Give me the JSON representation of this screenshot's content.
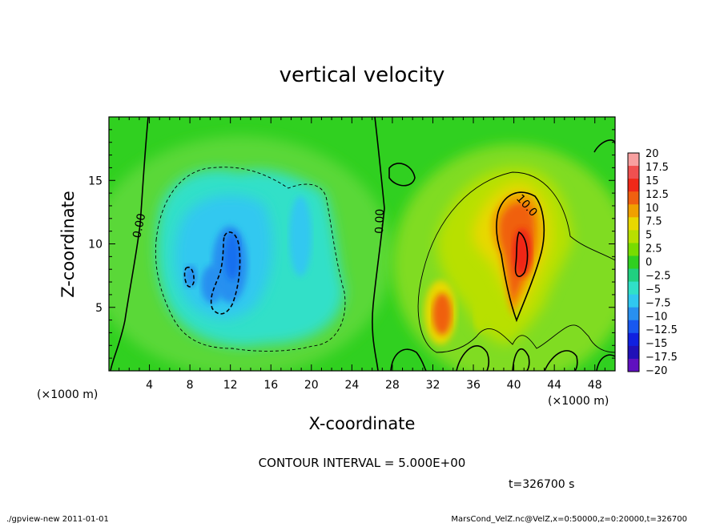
{
  "chart_data": {
    "type": "heatmap",
    "title": "vertical velocity",
    "xlabel": "X-coordinate",
    "ylabel": "Z-coordinate",
    "x_unit": "(×1000 m)",
    "y_unit": "(×1000 m)",
    "xlim": [
      0,
      50
    ],
    "ylim": [
      0,
      20
    ],
    "x_ticks": [
      4,
      8,
      12,
      16,
      20,
      24,
      28,
      32,
      36,
      40,
      44,
      48
    ],
    "y_ticks": [
      5,
      10,
      15
    ],
    "contour_interval_text": "CONTOUR INTERVAL = 5.000E+00",
    "contour_labels": [
      "0.00",
      "0.00",
      "10.0"
    ],
    "colorbar": {
      "levels": [
        20,
        17.5,
        15,
        12.5,
        10,
        7.5,
        5,
        2.5,
        0,
        -2.5,
        -5,
        -7.5,
        -10,
        -12.5,
        -15,
        -17.5,
        -20
      ],
      "labels": [
        "20",
        "17.5",
        "15",
        "12.5",
        "10",
        "7.5",
        "5",
        "2.5",
        "0",
        "−2.5",
        "−5",
        "−7.5",
        "−10",
        "−12.5",
        "−15",
        "−17.5",
        "−20"
      ],
      "colors": [
        "#f7a0a0",
        "#f05050",
        "#f02818",
        "#f06010",
        "#f0a000",
        "#e8d800",
        "#b8e000",
        "#78dc00",
        "#30d020",
        "#20d080",
        "#30e0c8",
        "#30c8f0",
        "#2890f0",
        "#1858f0",
        "#1020e0",
        "#2010b8",
        "#6010c0"
      ]
    },
    "features": [
      {
        "kind": "updraft",
        "x": 40.5,
        "z": 9.5,
        "w": 14
      },
      {
        "kind": "updraft",
        "x": 33,
        "z": 4.5,
        "w": 10
      },
      {
        "kind": "downdraft",
        "x": 11.5,
        "z": 8.5,
        "w": -10
      },
      {
        "kind": "downdraft",
        "x": 8,
        "z": 7.5,
        "w": -7
      },
      {
        "kind": "downdraft",
        "x": 18.8,
        "z": 10.5,
        "w": -6
      }
    ]
  },
  "annotations": {
    "time_text": "t=326700 s",
    "footer_left": "./gpview-new  2011-01-01",
    "footer_right": "MarsCond_VelZ.nc@VelZ,x=0:50000,z=0:20000,t=326700"
  }
}
